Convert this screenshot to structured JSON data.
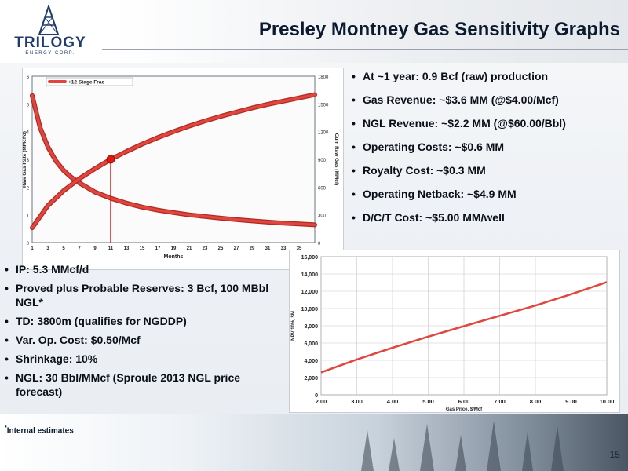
{
  "title": "Presley Montney Gas Sensitivity Graphs",
  "logo": {
    "word": "TRILOGY",
    "sub": "ENERGY CORP."
  },
  "right_bullets": [
    "At ~1 year: 0.9 Bcf (raw) production",
    "Gas Revenue: ~$3.6 MM (@$4.00/Mcf)",
    "NGL Revenue: ~$2.2 MM (@$60.00/Bbl)",
    "Operating Costs: ~$0.6 MM",
    "Royalty Cost: ~$0.3 MM",
    "Operating Netback: ~$4.9 MM",
    "D/C/T Cost: ~$5.00 MM/well"
  ],
  "left_bullets": [
    "IP: 5.3 MMcf/d",
    "Proved plus Probable Reserves: 3 Bcf, 100 MBbl NGL*",
    "TD: 3800m (qualifies for NGDDP)",
    "Var. Op. Cost: $0.50/Mcf",
    "Shrinkage: 10%",
    "NGL: 30 Bbl/MMcf (Sproule 2013 NGL price forecast)"
  ],
  "footnote": {
    "mark": "*",
    "text": "Internal estimates"
  },
  "page_number": "15",
  "colors": {
    "curve": "#e0463e",
    "curve_dark": "#b02a22",
    "marker": "#e0190f",
    "title": "#0b1a2e"
  },
  "chart_data": [
    {
      "type": "line",
      "legend": [
        "+12 Stage Frac"
      ],
      "legend_position": "top-left",
      "xlabel": "Months",
      "ylabel": "Raw Gas Rate (MMcf/d)",
      "y2label": "Cum Raw Gas (MMcf)",
      "xlim": [
        1,
        37
      ],
      "ylim": [
        0,
        6
      ],
      "y2lim": [
        0,
        1800
      ],
      "xticks": [
        1,
        3,
        5,
        7,
        9,
        11,
        13,
        15,
        17,
        19,
        21,
        23,
        25,
        27,
        29,
        31,
        33,
        35
      ],
      "yticks": [
        0,
        1,
        2,
        3,
        4,
        5,
        6
      ],
      "y2ticks": [
        0,
        300,
        600,
        900,
        1200,
        1500,
        1800
      ],
      "series": [
        {
          "name": "+12 Stage Frac",
          "axis": "left",
          "x": [
            1,
            2,
            3,
            4,
            5,
            6,
            7,
            9,
            11,
            13,
            15,
            17,
            19,
            21,
            23,
            25,
            27,
            29,
            31,
            33,
            35,
            37
          ],
          "values": [
            5.3,
            4.15,
            3.45,
            2.95,
            2.6,
            2.35,
            2.15,
            1.82,
            1.6,
            1.42,
            1.28,
            1.17,
            1.08,
            1.0,
            0.94,
            0.88,
            0.83,
            0.78,
            0.74,
            0.7,
            0.67,
            0.64
          ]
        },
        {
          "axis": "right",
          "x": [
            1,
            3,
            5,
            7,
            9,
            11,
            13,
            15,
            17,
            19,
            21,
            23,
            25,
            27,
            29,
            31,
            33,
            35,
            37
          ],
          "values": [
            160,
            400,
            560,
            690,
            800,
            900,
            985,
            1065,
            1135,
            1200,
            1260,
            1315,
            1365,
            1410,
            1455,
            1495,
            1530,
            1565,
            1600
          ]
        }
      ],
      "marker": {
        "x": 11,
        "y": 3.0
      }
    },
    {
      "type": "line",
      "xlabel": "Gas Price, $/Mcf",
      "ylabel": "NPV 10%, $M",
      "xlim": [
        2.0,
        10.0
      ],
      "ylim": [
        0,
        16000
      ],
      "xticks": [
        "2.00",
        "3.00",
        "4.00",
        "5.00",
        "6.00",
        "7.00",
        "8.00",
        "9.00",
        "10.00"
      ],
      "yticks": [
        "0",
        "2,000",
        "4,000",
        "6,000",
        "8,000",
        "10,000",
        "12,000",
        "14,000",
        "16,000"
      ],
      "series": [
        {
          "x": [
            2,
            3,
            4,
            5,
            6,
            7,
            8,
            9,
            10
          ],
          "values": [
            2600,
            4100,
            5450,
            6750,
            7950,
            9150,
            10350,
            11650,
            13050
          ]
        }
      ]
    }
  ]
}
